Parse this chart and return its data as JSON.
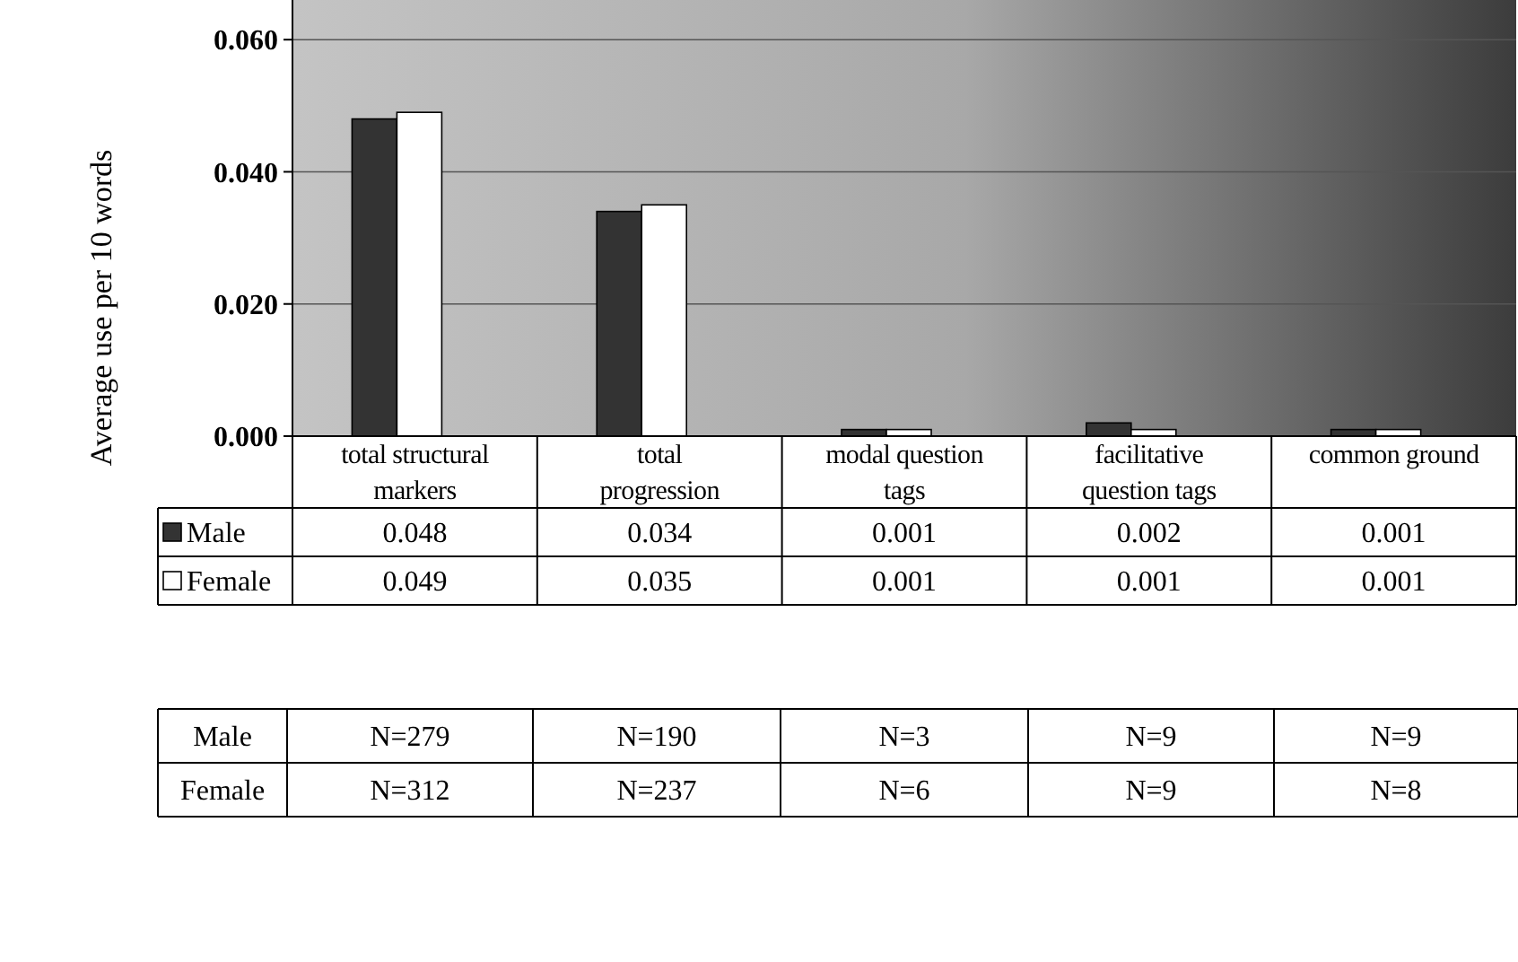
{
  "chart_data": {
    "type": "bar",
    "ylabel": "Average use per 10 words",
    "categories": [
      "total structural markers",
      "total progression",
      "modal question tags",
      "facilitative question tags",
      "common ground"
    ],
    "series": [
      {
        "name": "Male",
        "color": "#333333",
        "values": [
          0.048,
          0.034,
          0.001,
          0.002,
          0.001
        ]
      },
      {
        "name": "Female",
        "color": "#ffffff",
        "values": [
          0.049,
          0.035,
          0.001,
          0.001,
          0.001
        ]
      }
    ],
    "ylim": [
      0,
      0.066
    ],
    "yticks": [
      {
        "value": 0,
        "label": "0.000"
      },
      {
        "value": 0.02,
        "label": "0.020"
      },
      {
        "value": 0.04,
        "label": "0.040"
      },
      {
        "value": 0.06,
        "label": "0.060"
      }
    ],
    "grid": "y",
    "legend": "bottom",
    "data_labels": true,
    "annotations": [
      "Male",
      "N=279",
      "N=190",
      "N=3",
      "N=9",
      "N=9",
      "Female",
      "N=312",
      "N=237",
      "N=6",
      "N=9",
      "N=8"
    ]
  }
}
